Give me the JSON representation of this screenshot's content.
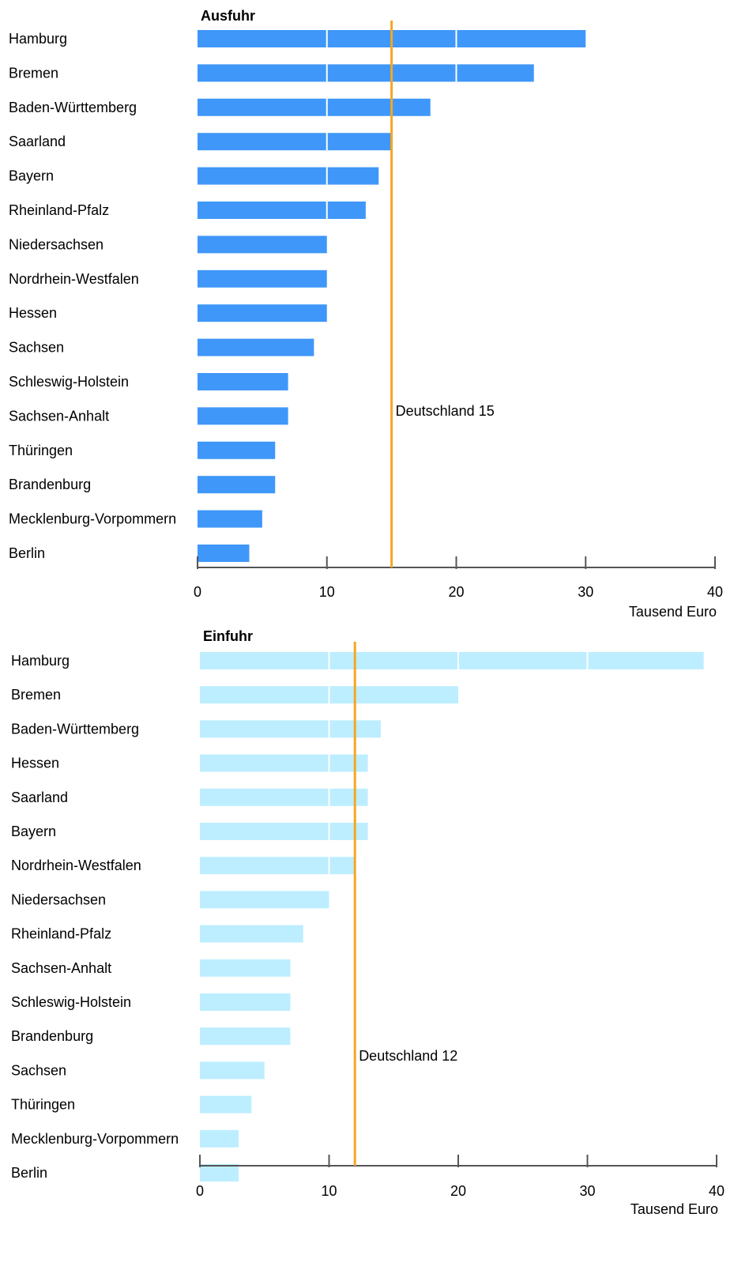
{
  "colors": {
    "export_bar": "#3f97f9",
    "import_bar": "#bdeeff",
    "reference_line": "#f5a623",
    "axis": "#555555",
    "grid_inside_bar": "#ffffff"
  },
  "chart_data": [
    {
      "type": "bar",
      "orientation": "horizontal",
      "title": "Ausfuhr",
      "categories": [
        "Hamburg",
        "Bremen",
        "Baden-Württemberg",
        "Saarland",
        "Bayern",
        "Rheinland-Pfalz",
        "Niedersachsen",
        "Nordrhein-Westfalen",
        "Hessen",
        "Sachsen",
        "Schleswig-Holstein",
        "Sachsen-Anhalt",
        "Thüringen",
        "Brandenburg",
        "Mecklenburg-Vorpommern",
        "Berlin"
      ],
      "values": [
        30,
        26,
        18,
        15,
        14,
        13,
        10,
        10,
        10,
        9,
        7,
        7,
        6,
        6,
        5,
        4
      ],
      "xlim": [
        0,
        40
      ],
      "xticks": [
        "0",
        "10",
        "20",
        "30",
        "40"
      ],
      "xlabel": "Tausend Euro",
      "reference": {
        "label": "Deutschland 15",
        "value": 15
      },
      "grid": "white lines inside bars"
    },
    {
      "type": "bar",
      "orientation": "horizontal",
      "title": "Einfuhr",
      "categories": [
        "Hamburg",
        "Bremen",
        "Baden-Württemberg",
        "Hessen",
        "Saarland",
        "Bayern",
        "Nordrhein-Westfalen",
        "Niedersachsen",
        "Rheinland-Pfalz",
        "Sachsen-Anhalt",
        "Schleswig-Holstein",
        "Brandenburg",
        "Sachsen",
        "Thüringen",
        "Mecklenburg-Vorpommern",
        "Berlin"
      ],
      "values": [
        39,
        20,
        14,
        13,
        13,
        13,
        12,
        10,
        8,
        7,
        7,
        7,
        5,
        4,
        3,
        3
      ],
      "xlim": [
        0,
        40
      ],
      "xticks": [
        "0",
        "10",
        "20",
        "30",
        "40"
      ],
      "xlabel": "Tausend Euro",
      "reference": {
        "label": "Deutschland 12",
        "value": 12
      },
      "grid": "white lines inside bars"
    }
  ]
}
